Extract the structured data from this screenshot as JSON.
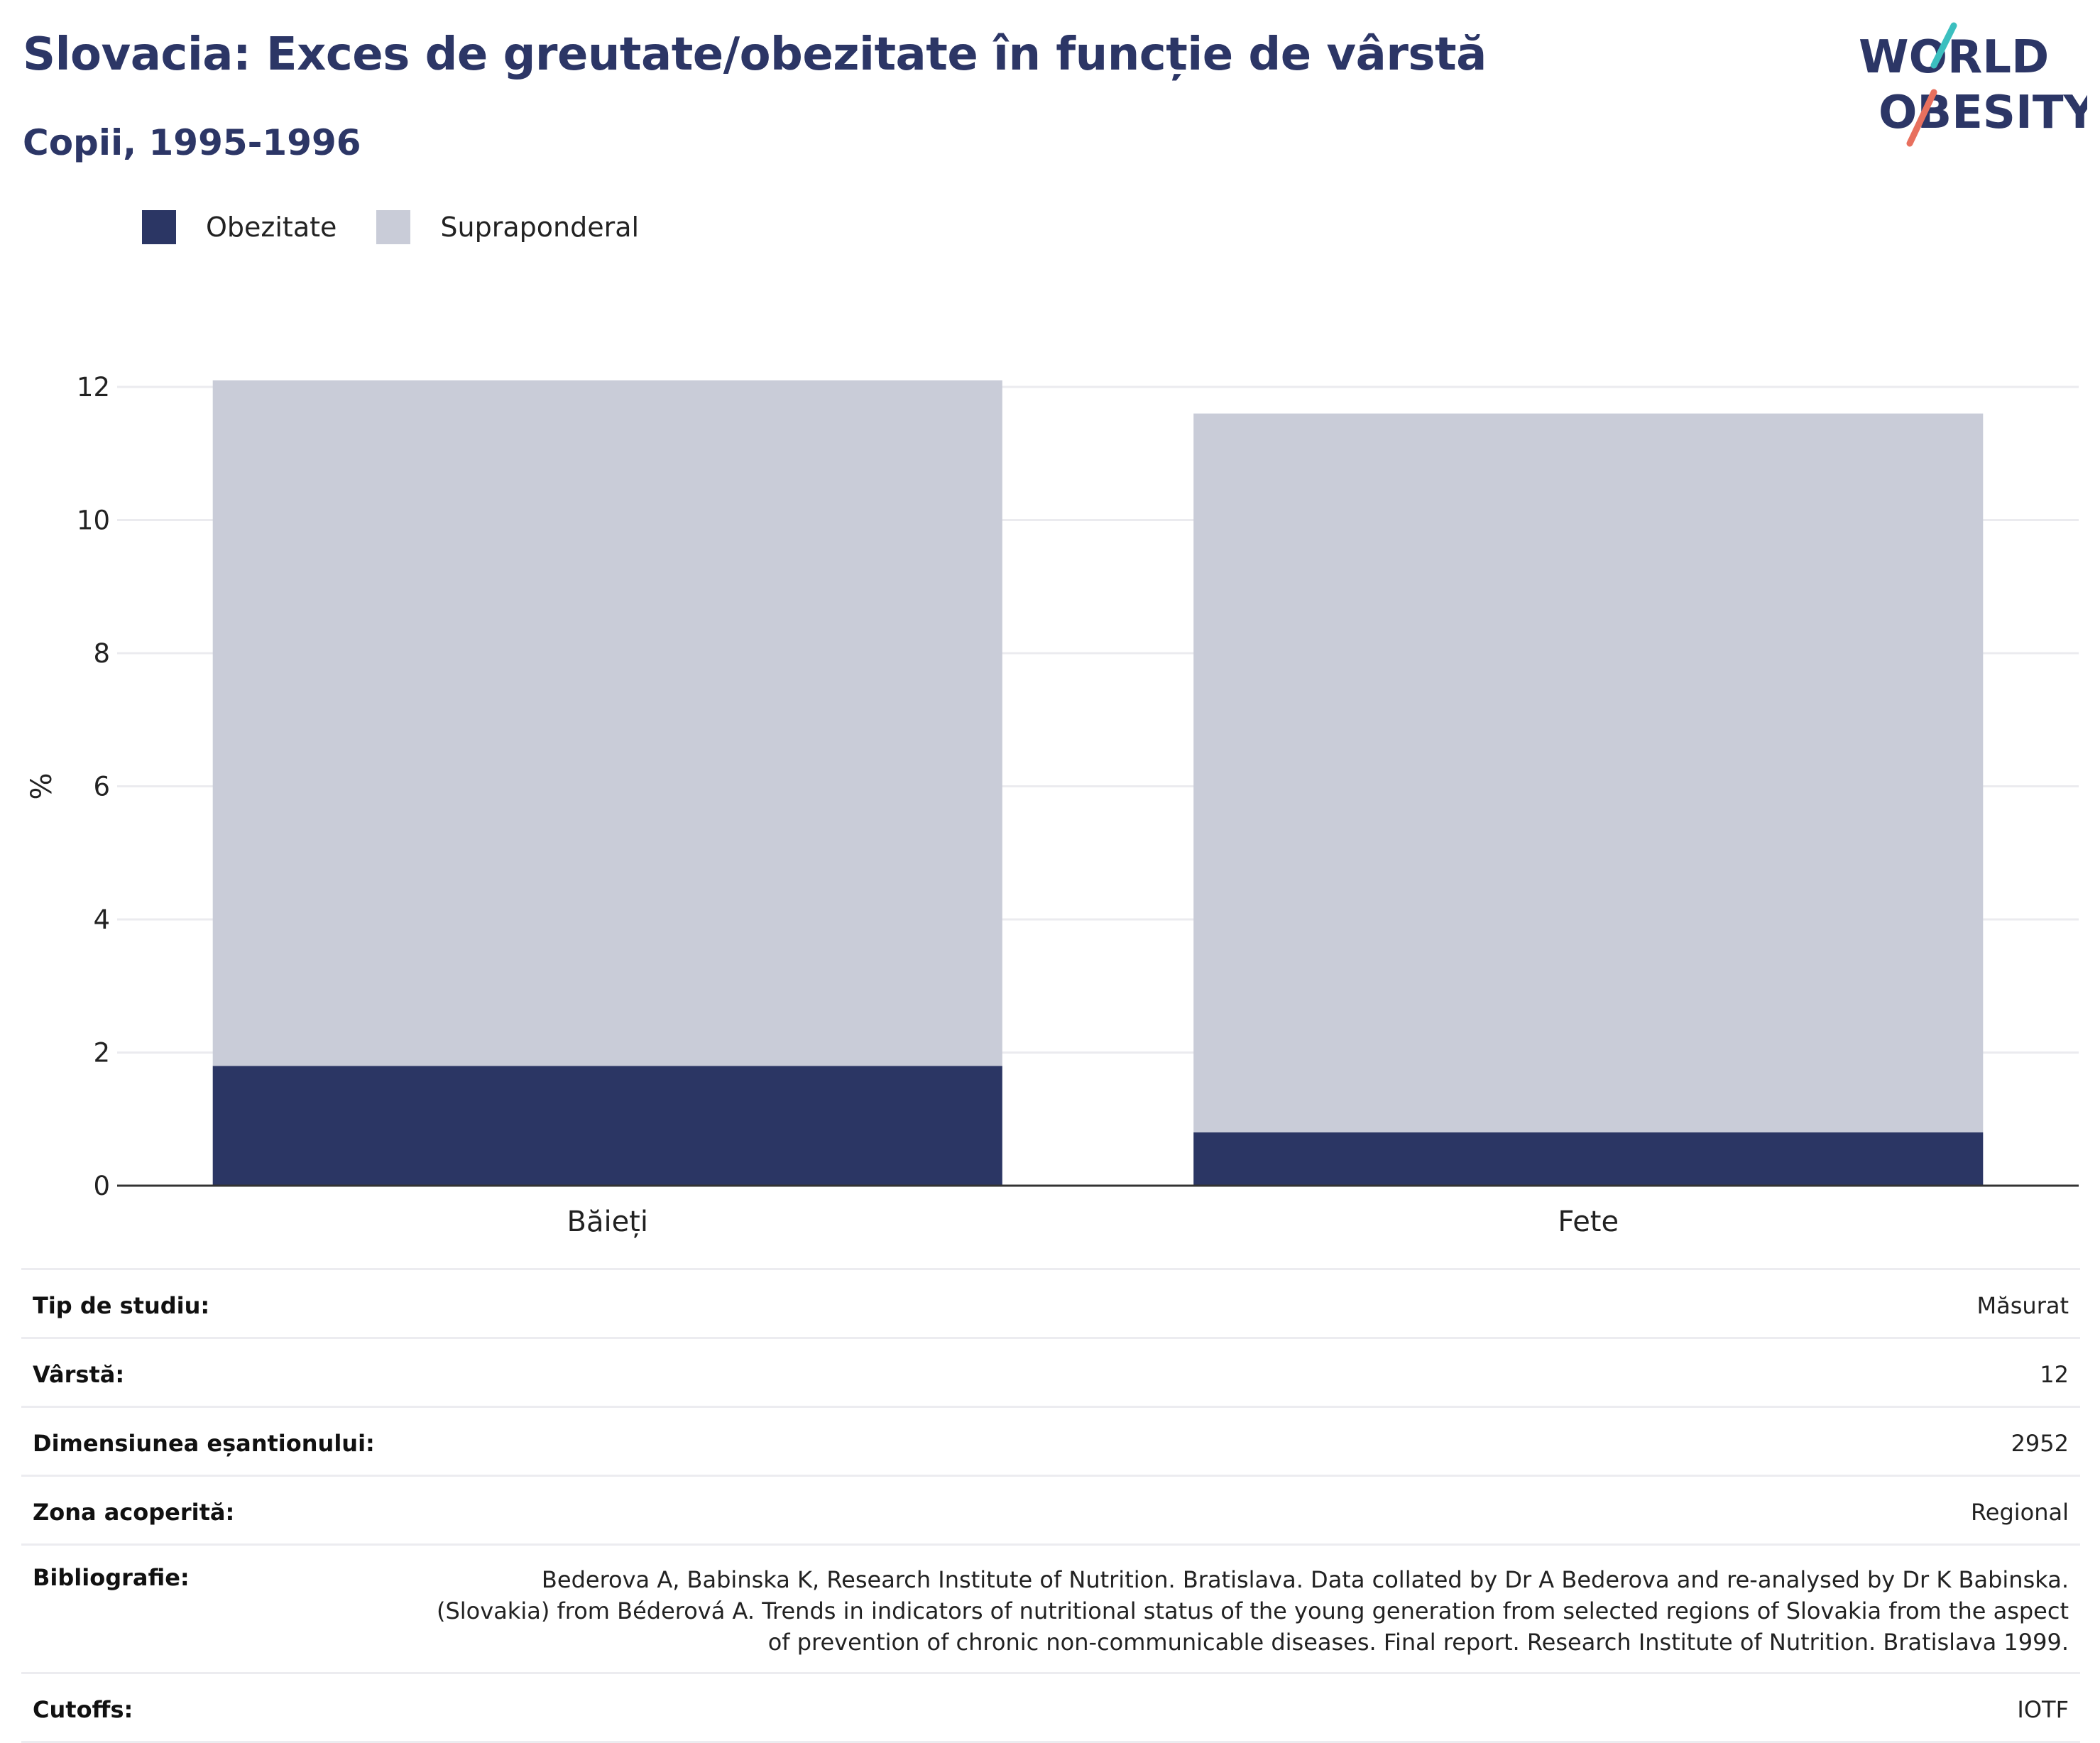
{
  "header": {
    "title": "Slovacia: Exces de greutate/obezitate în funcție de vârstă",
    "subtitle": "Copii, 1995-1996",
    "logo_line1": "WORLD",
    "logo_line2": "OBESITY"
  },
  "colors": {
    "obezitate": "#2b3664",
    "supraponderal": "#c9ccd8",
    "title": "#2c3666",
    "logo_teal": "#3bbfbf",
    "logo_coral": "#e8705e",
    "grid": "#ebebef",
    "axis": "#333333"
  },
  "legend": [
    {
      "label": "Obezitate",
      "color": "#2b3664"
    },
    {
      "label": "Supraponderal",
      "color": "#c9ccd8"
    }
  ],
  "chart_data": {
    "type": "bar",
    "stacked": true,
    "categories": [
      "Băieți",
      "Fete"
    ],
    "series": [
      {
        "name": "Obezitate",
        "values": [
          1.8,
          0.8
        ]
      },
      {
        "name": "Supraponderal",
        "values": [
          10.3,
          10.8
        ]
      }
    ],
    "ylabel": "%",
    "ylim": [
      0,
      12
    ],
    "yticks": [
      0,
      2,
      4,
      6,
      8,
      10,
      12
    ],
    "grid": true,
    "legend_position": "top-left"
  },
  "meta": [
    {
      "label": "Tip de studiu:",
      "value": "Măsurat"
    },
    {
      "label": "Vârstă:",
      "value": "12"
    },
    {
      "label": "Dimensiunea eșantionului:",
      "value": "2952"
    },
    {
      "label": "Zona acoperită:",
      "value": "Regional"
    },
    {
      "label": "Bibliografie:",
      "value": "Bederova A, Babinska K, Research Institute of Nutrition. Bratislava. Data collated by Dr A Bederova and re-analysed by Dr K Babinska. (Slovakia) from Béderová A. Trends in indicators of nutritional status of the young generation from selected regions of Slovakia from the aspect of prevention of chronic non-communicable diseases. Final report. Research Institute of Nutrition. Bratislava 1999."
    },
    {
      "label": "Cutoffs:",
      "value": "IOTF"
    }
  ]
}
